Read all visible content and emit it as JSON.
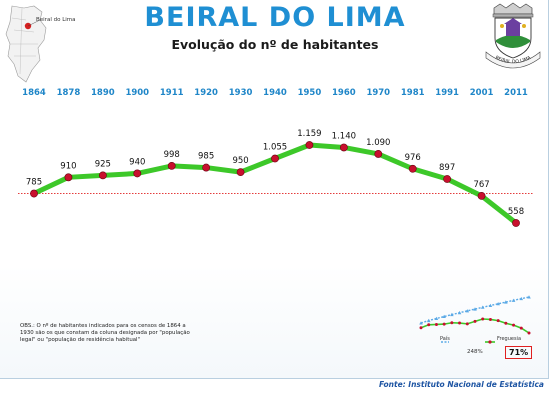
{
  "header": {
    "title": "BEIRAL DO LIMA",
    "subtitle": "Evolução do nº de habitantes",
    "map_label": "Beiral do Lima",
    "crest_text": "BEIRAL DO LIMA"
  },
  "chart_data": {
    "type": "line",
    "categories": [
      "1864",
      "1878",
      "1890",
      "1900",
      "1911",
      "1920",
      "1930",
      "1940",
      "1950",
      "1960",
      "1970",
      "1981",
      "1991",
      "2001",
      "2011"
    ],
    "series": [
      {
        "values": [
          785,
          910,
          925,
          940,
          998,
          985,
          950,
          1055,
          1159,
          1140,
          1090,
          976,
          897,
          767,
          558
        ],
        "labels": [
          "785",
          "910",
          "925",
          "940",
          "998",
          "985",
          "950",
          "1.055",
          "1.159",
          "1.140",
          "1.090",
          "976",
          "897",
          "767",
          "558"
        ],
        "color": "#3dc829",
        "marker_color": "#c8102e"
      }
    ],
    "reference_line": {
      "value": 785,
      "color": "#e02020",
      "style": "dotted"
    },
    "ylim": [
      500,
      1250
    ],
    "grid": false,
    "legend": "none"
  },
  "inset": {
    "legend_pais": "País",
    "legend_freguesia": "Freguesia",
    "pais_pct": "248%",
    "freguesia_pct": "71%",
    "pais_color": "#5aa9e6",
    "freguesia_color": "#c8102e"
  },
  "note": "OBS.: O nº de habitantes indicados para os censos de 1864 a 1930 são os que constam da coluna designada por \"população legal\" ou \"população de residência habitual\"",
  "source": "Fonte: Instituto Nacional de Estatística"
}
